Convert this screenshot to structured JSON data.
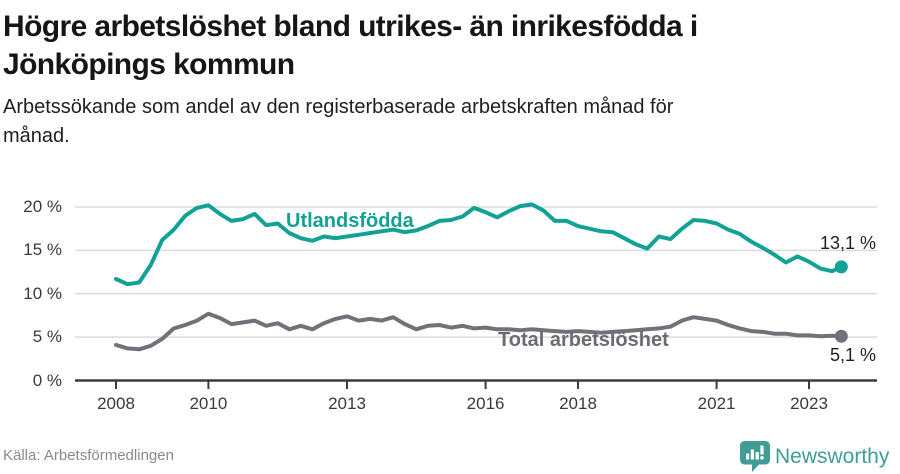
{
  "header": {
    "title_lines": [
      "Högre arbetslöshet bland utrikes- än inrikesfödda i",
      "Jönköpings kommun"
    ],
    "subtitle_lines": [
      "Arbetssökande som andel av den registerbaserade arbetskraften månad för",
      "månad."
    ]
  },
  "chart_data": {
    "type": "line",
    "title": "Högre arbetslöshet bland utrikes- än inrikesfödda i Jönköpings kommun",
    "subtitle": "Arbetssökande som andel av den registerbaserade arbetskraften månad för månad.",
    "xlabel": "",
    "ylabel": "",
    "ylim": [
      0,
      21.7
    ],
    "xlim": [
      2007.1,
      2024.4
    ],
    "grid": "horizontal",
    "legend_position": "inline-labels-on-lines",
    "x_axis": {
      "ticks": [
        {
          "value": 2008,
          "label": "2008"
        },
        {
          "value": 2010,
          "label": "2010"
        },
        {
          "value": 2013,
          "label": "2013"
        },
        {
          "value": 2016,
          "label": "2016"
        },
        {
          "value": 2018,
          "label": "2018"
        },
        {
          "value": 2021,
          "label": "2021"
        },
        {
          "value": 2023,
          "label": "2023"
        }
      ]
    },
    "y_axis": {
      "ticks": [
        {
          "value": 0,
          "label": "0 %"
        },
        {
          "value": 5,
          "label": "5 %"
        },
        {
          "value": 10,
          "label": "10 %"
        },
        {
          "value": 15,
          "label": "15 %"
        },
        {
          "value": 20,
          "label": "20 %"
        }
      ]
    },
    "x": [
      2008,
      2008.25,
      2008.5,
      2008.75,
      2009,
      2009.25,
      2009.5,
      2009.75,
      2010,
      2010.25,
      2010.5,
      2010.75,
      2011,
      2011.25,
      2011.5,
      2011.75,
      2012,
      2012.25,
      2012.5,
      2012.75,
      2013,
      2013.25,
      2013.5,
      2013.75,
      2014,
      2014.25,
      2014.5,
      2014.75,
      2015,
      2015.25,
      2015.5,
      2015.75,
      2016,
      2016.25,
      2016.5,
      2016.75,
      2017,
      2017.25,
      2017.5,
      2017.75,
      2018,
      2018.25,
      2018.5,
      2018.75,
      2019,
      2019.25,
      2019.5,
      2019.75,
      2020,
      2020.25,
      2020.5,
      2020.75,
      2021,
      2021.25,
      2021.5,
      2021.75,
      2022,
      2022.25,
      2022.5,
      2022.75,
      2023,
      2023.25,
      2023.5,
      2023.7
    ],
    "series": [
      {
        "name": "Utlandsfödda",
        "color": "#12A295",
        "end_label": "13,1 %",
        "last_value": 13.1,
        "values": [
          11.7,
          11.1,
          11.3,
          13.3,
          16.2,
          17.4,
          19,
          19.9,
          20.2,
          19.2,
          18.4,
          18.6,
          19.2,
          17.9,
          18.1,
          17,
          16.4,
          16.1,
          16.6,
          16.4,
          16.6,
          16.8,
          17,
          17.2,
          17.4,
          17.1,
          17.3,
          17.8,
          18.4,
          18.5,
          18.9,
          19.9,
          19.4,
          18.8,
          19.5,
          20.1,
          20.3,
          19.6,
          18.4,
          18.4,
          17.8,
          17.5,
          17.2,
          17.1,
          16.4,
          15.7,
          15.2,
          16.6,
          16.3,
          17.5,
          18.5,
          18.4,
          18.1,
          17.4,
          16.9,
          16,
          15.3,
          14.5,
          13.6,
          14.3,
          13.7,
          12.9,
          12.6,
          13.1
        ]
      },
      {
        "name": "Total arbetslöshet",
        "color": "#74707A",
        "end_label": "5,1 %",
        "last_value": 5.1,
        "values": [
          4.1,
          3.7,
          3.6,
          4,
          4.8,
          6,
          6.4,
          6.9,
          7.7,
          7.2,
          6.5,
          6.7,
          6.9,
          6.3,
          6.6,
          5.9,
          6.3,
          5.9,
          6.6,
          7.1,
          7.4,
          6.9,
          7.1,
          6.9,
          7.3,
          6.5,
          5.9,
          6.3,
          6.4,
          6.1,
          6.3,
          6,
          6.1,
          5.9,
          5.9,
          5.8,
          5.9,
          5.8,
          5.7,
          5.6,
          5.7,
          5.6,
          5.5,
          5.6,
          5.7,
          5.8,
          5.9,
          6,
          6.2,
          6.9,
          7.3,
          7.1,
          6.9,
          6.4,
          6,
          5.7,
          5.6,
          5.4,
          5.4,
          5.2,
          5.2,
          5.1,
          5.15,
          5.1
        ]
      }
    ]
  },
  "footer": {
    "source": "Källa: Arbetsförmedlingen",
    "brand": "Newsworthy"
  },
  "colors": {
    "accent_teal": "#12A295",
    "line_gray": "#74707A",
    "label_gray": "#6E6A74",
    "grid": "#DBDBDB",
    "axis": "#3C3C3C",
    "axis_text": "#3A3A3A",
    "text_dark": "#161616",
    "muted": "#8B898D",
    "logo_teal": "#3F9D96"
  }
}
